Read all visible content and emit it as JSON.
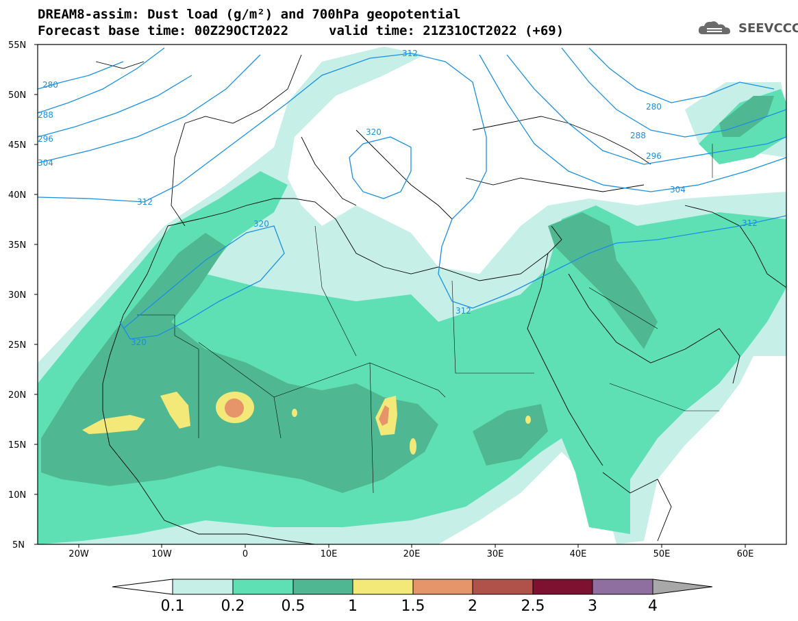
{
  "header": {
    "line1": "DREAM8-assim: Dust load (g/m²) and 700hPa geopotential",
    "line2_left": "Forecast base time: 00Z29OCT2022",
    "line2_right": "valid time: 21Z31OCT2022 (+69)"
  },
  "logo": {
    "text": "SEEVCCC",
    "icon": "cloud-logo-icon"
  },
  "map": {
    "region": "North Africa / Middle East / Southern Europe",
    "lat_ticks": [
      "55N",
      "50N",
      "45N",
      "40N",
      "35N",
      "30N",
      "25N",
      "20N",
      "15N",
      "10N",
      "5N"
    ],
    "lon_ticks": [
      "20W",
      "10W",
      "0",
      "10E",
      "20E",
      "30E",
      "40E",
      "50E",
      "60E"
    ],
    "lat_range": [
      5,
      55
    ],
    "lon_range": [
      -25,
      65
    ],
    "contour_labels": [
      "280",
      "288",
      "296",
      "304",
      "312",
      "320",
      "320",
      "320",
      "312",
      "312",
      "280",
      "288",
      "296",
      "304",
      "312"
    ],
    "contour_color": "#1a8fe0"
  },
  "colorbar": {
    "ticks": [
      "0.1",
      "0.2",
      "0.5",
      "1",
      "1.5",
      "2",
      "2.5",
      "3",
      "4"
    ],
    "colors": [
      "#c6efe8",
      "#5ee0b4",
      "#4fb892",
      "#f2e979",
      "#e6956a",
      "#b0524a",
      "#7e1030",
      "#8f6fa0",
      "#a8a8a8"
    ]
  }
}
